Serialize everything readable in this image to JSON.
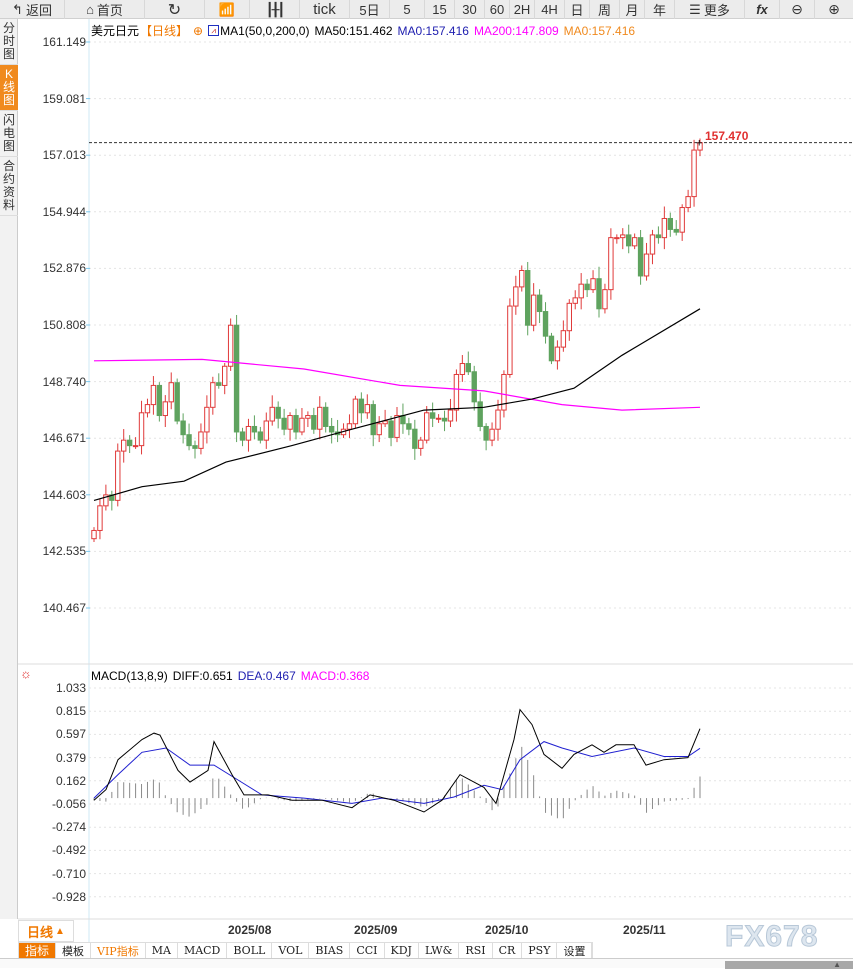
{
  "toolbar": {
    "back": "返回",
    "home": "首页",
    "tick": "tick",
    "five_day": "5日",
    "periods": [
      "5",
      "15",
      "30",
      "60",
      "2H",
      "4H",
      "日",
      "周",
      "月",
      "年"
    ],
    "more": "更多",
    "fx": "fx"
  },
  "left_tabs": [
    "分时图",
    "K线图",
    "闪电图",
    "合约资料"
  ],
  "legend": {
    "symbol": "美元日元",
    "period": "【日线】",
    "indicator": "MA1(50,0,200,0)",
    "ma50": "MA50:151.462",
    "ma0": "MA0:157.416",
    "ma200": "MA200:147.809",
    "ma0b": "MA0:157.416"
  },
  "price_axis": [
    "161.149",
    "159.081",
    "157.013",
    "154.944",
    "152.876",
    "150.808",
    "148.740",
    "146.671",
    "144.603",
    "142.535",
    "140.467"
  ],
  "last_price": "157.470",
  "macd_legend": {
    "name": "MACD(13,8,9)",
    "diff": "DIFF:0.651",
    "dea": "DEA:0.467",
    "macd": "MACD:0.368"
  },
  "macd_axis": [
    "1.033",
    "0.815",
    "0.597",
    "0.379",
    "0.162",
    "-0.056",
    "-0.274",
    "-0.492",
    "-0.710",
    "-0.928"
  ],
  "x_axis": [
    "2025/08",
    "2025/09",
    "2025/10",
    "2025/11"
  ],
  "period_selector": "日线",
  "indicator_tabs": [
    "指标",
    "模板",
    "VIP指标",
    "MA",
    "MACD",
    "BOLL",
    "VOL",
    "BIAS",
    "CCI",
    "KDJ",
    "LW&",
    "RSI",
    "CR",
    "PSY",
    "设置"
  ],
  "watermark": "FX678",
  "colors": {
    "up": "#e03a3a",
    "down": "#5fa35f",
    "ma50": "#000000",
    "ma200": "#ff00ff",
    "diff": "#000000",
    "dea": "#2020d0",
    "accent": "#f07800"
  },
  "chart_data": {
    "type": "candlestick",
    "price_range": [
      140.467,
      161.149
    ],
    "open_first": 143.0,
    "closes": [
      143.3,
      144.2,
      144.6,
      144.4,
      146.2,
      146.6,
      146.4,
      146.4,
      147.6,
      147.9,
      148.6,
      147.5,
      148.0,
      148.7,
      147.3,
      146.8,
      146.4,
      146.3,
      146.9,
      147.8,
      148.7,
      148.6,
      149.3,
      150.8,
      146.9,
      146.6,
      147.1,
      146.9,
      146.6,
      147.3,
      147.8,
      147.4,
      147.0,
      147.5,
      146.9,
      147.4,
      147.5,
      147.0,
      147.8,
      147.1,
      146.9,
      146.8,
      147.0,
      147.2,
      148.1,
      147.6,
      147.9,
      146.8,
      147.2,
      147.3,
      146.7,
      147.5,
      147.2,
      147.0,
      146.3,
      146.6,
      147.6,
      147.4,
      147.4,
      147.3,
      147.7,
      149.0,
      149.4,
      149.1,
      148.0,
      147.1,
      146.6,
      147.0,
      147.7,
      149.0,
      151.5,
      152.2,
      152.8,
      150.8,
      151.9,
      151.3,
      150.4,
      149.5,
      150.0,
      150.6,
      151.6,
      151.8,
      152.3,
      152.1,
      152.5,
      151.4,
      152.1,
      154.0,
      154.0,
      154.1,
      153.7,
      154.0,
      152.6,
      153.4,
      154.1,
      154.0,
      154.7,
      154.3,
      154.2,
      155.1,
      155.5,
      157.2,
      157.47
    ],
    "ma50": [
      [
        0,
        144.4
      ],
      [
        8,
        144.9
      ],
      [
        15,
        145.1
      ],
      [
        22,
        145.8
      ],
      [
        33,
        146.4
      ],
      [
        43,
        147.0
      ],
      [
        55,
        147.7
      ],
      [
        65,
        147.8
      ],
      [
        73,
        148.1
      ],
      [
        80,
        148.5
      ],
      [
        88,
        149.7
      ],
      [
        101,
        151.4
      ]
    ],
    "ma200": [
      [
        0,
        149.5
      ],
      [
        18,
        149.55
      ],
      [
        35,
        149.2
      ],
      [
        51,
        148.6
      ],
      [
        65,
        148.4
      ],
      [
        78,
        147.9
      ],
      [
        88,
        147.7
      ],
      [
        101,
        147.8
      ]
    ],
    "macd_range": [
      -0.928,
      1.033
    ],
    "diff": [
      [
        0,
        -0.02
      ],
      [
        2,
        0.08
      ],
      [
        4,
        0.36
      ],
      [
        8,
        0.55
      ],
      [
        10,
        0.61
      ],
      [
        11,
        0.59
      ],
      [
        14,
        0.26
      ],
      [
        16,
        0.15
      ],
      [
        19,
        0.26
      ],
      [
        20,
        0.53
      ],
      [
        23,
        0.22
      ],
      [
        25,
        0.03
      ],
      [
        29,
        0.03
      ],
      [
        33,
        -0.02
      ],
      [
        38,
        -0.02
      ],
      [
        43,
        -0.09
      ],
      [
        46,
        0.03
      ],
      [
        50,
        -0.02
      ],
      [
        55,
        -0.13
      ],
      [
        58,
        -0.02
      ],
      [
        61,
        0.22
      ],
      [
        65,
        0.1
      ],
      [
        67,
        -0.05
      ],
      [
        70,
        0.55
      ],
      [
        71,
        0.83
      ],
      [
        73,
        0.69
      ],
      [
        75,
        0.41
      ],
      [
        78,
        0.28
      ],
      [
        80,
        0.41
      ],
      [
        83,
        0.5
      ],
      [
        85,
        0.43
      ],
      [
        87,
        0.5
      ],
      [
        90,
        0.5
      ],
      [
        92,
        0.31
      ],
      [
        95,
        0.36
      ],
      [
        99,
        0.38
      ],
      [
        101,
        0.651
      ]
    ],
    "dea": [
      [
        0,
        0.0
      ],
      [
        4,
        0.22
      ],
      [
        8,
        0.43
      ],
      [
        12,
        0.47
      ],
      [
        16,
        0.31
      ],
      [
        20,
        0.31
      ],
      [
        24,
        0.17
      ],
      [
        28,
        0.03
      ],
      [
        35,
        0.0
      ],
      [
        43,
        -0.05
      ],
      [
        48,
        0.0
      ],
      [
        55,
        -0.05
      ],
      [
        60,
        0.01
      ],
      [
        65,
        0.12
      ],
      [
        68,
        0.08
      ],
      [
        71,
        0.36
      ],
      [
        75,
        0.53
      ],
      [
        78,
        0.47
      ],
      [
        83,
        0.39
      ],
      [
        90,
        0.47
      ],
      [
        95,
        0.39
      ],
      [
        99,
        0.39
      ],
      [
        101,
        0.467
      ]
    ]
  }
}
